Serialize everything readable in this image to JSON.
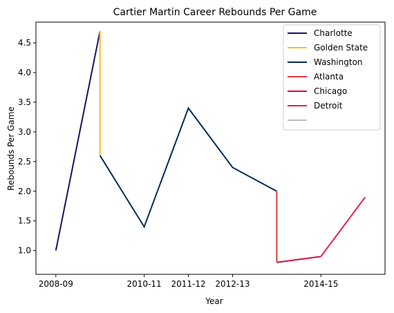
{
  "chart_data": {
    "type": "line",
    "title": "Cartier Martin Career Rebounds Per Game",
    "xlabel": "Year",
    "ylabel": "Rebounds Per Game",
    "x_ticks": [
      "2008-09",
      "2010-11",
      "2011-12",
      "2012-13",
      "2014-15"
    ],
    "x_tick_positions": [
      0,
      2,
      3,
      4,
      6
    ],
    "xlim": [
      -0.45,
      7.45
    ],
    "y_ticks": [
      "1.0",
      "1.5",
      "2.0",
      "2.5",
      "3.0",
      "3.5",
      "4.0",
      "4.5"
    ],
    "y_tick_values": [
      1.0,
      1.5,
      2.0,
      2.5,
      3.0,
      3.5,
      4.0,
      4.5
    ],
    "ylim": [
      0.6,
      4.85
    ],
    "grid": false,
    "legend_position": "top-right",
    "series": [
      {
        "name": "Charlotte",
        "color": "#1d1160",
        "points": [
          [
            0,
            1.0
          ],
          [
            1,
            4.7
          ]
        ]
      },
      {
        "name": "Golden State",
        "color": "#fdb927",
        "points": [
          [
            1,
            4.7
          ],
          [
            1,
            2.6
          ]
        ]
      },
      {
        "name": "Washington",
        "color": "#002b5c",
        "points": [
          [
            1,
            2.6
          ],
          [
            2,
            1.4
          ],
          [
            3,
            3.4
          ],
          [
            4,
            2.4
          ],
          [
            5,
            2.0
          ]
        ]
      },
      {
        "name": "Atlanta",
        "color": "#e03a3e",
        "points": [
          [
            5,
            2.0
          ],
          [
            5,
            0.8
          ]
        ]
      },
      {
        "name": "Chicago",
        "color": "#ce1141",
        "points": [
          [
            5,
            0.8
          ],
          [
            6,
            0.9
          ]
        ]
      },
      {
        "name": "Detroit",
        "color": "#e31d4f",
        "points": [
          [
            6,
            0.9
          ],
          [
            7,
            1.9
          ]
        ]
      },
      {
        "name": "",
        "color": "#c0c0c0",
        "points": []
      }
    ]
  }
}
